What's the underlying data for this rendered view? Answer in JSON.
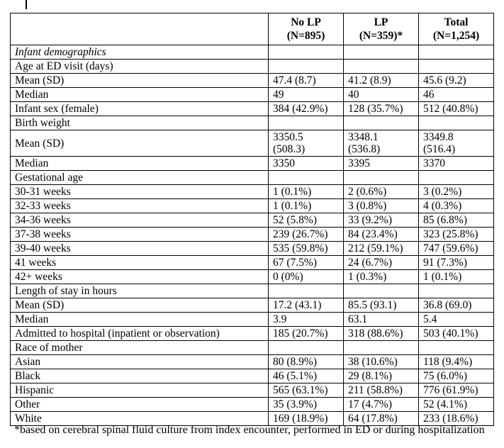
{
  "table": {
    "header": {
      "label_column": "",
      "columns": [
        "No LP\n(N=895)",
        "LP\n(N=359)*",
        "Total\n(N=1,254)"
      ]
    },
    "rows": [
      {
        "label": "Infant demographics",
        "style": "bolditalic",
        "values": [
          "",
          "",
          ""
        ]
      },
      {
        "label": "Age at ED visit (days)",
        "style": "bold",
        "values": [
          "",
          "",
          ""
        ]
      },
      {
        "label": "Mean (SD)",
        "style": "normal",
        "values": [
          "47.4 (8.7)",
          "41.2 (8.9)",
          "45.6 (9.2)"
        ]
      },
      {
        "label": "Median",
        "style": "normal",
        "values": [
          "49",
          "40",
          "46"
        ]
      },
      {
        "label": "Infant sex (female)",
        "style": "bold",
        "values": [
          "384 (42.9%)",
          "128 (35.7%)",
          "512 (40.8%)"
        ]
      },
      {
        "label": "Birth weight",
        "style": "bold",
        "values": [
          "",
          "",
          ""
        ]
      },
      {
        "label": "Mean (SD)",
        "style": "normal",
        "values": [
          "3350.5\n(508.3)",
          "3348.1\n(536.8)",
          "3349.8\n(516.4)"
        ]
      },
      {
        "label": "Median",
        "style": "normal",
        "values": [
          "3350",
          "3395",
          "3370"
        ]
      },
      {
        "label": "Gestational age",
        "style": "bold",
        "values": [
          "",
          "",
          ""
        ]
      },
      {
        "label": "30-31 weeks",
        "style": "normal",
        "values": [
          "1 (0.1%)",
          "2 (0.6%)",
          "3 (0.2%)"
        ]
      },
      {
        "label": "32-33 weeks",
        "style": "normal",
        "values": [
          "1 (0.1%)",
          "3 (0.8%)",
          "4 (0.3%)"
        ]
      },
      {
        "label": "34-36 weeks",
        "style": "normal",
        "values": [
          "52 (5.8%)",
          "33 (9.2%)",
          "85 (6.8%)"
        ]
      },
      {
        "label": "37-38 weeks",
        "style": "normal",
        "values": [
          "239 (26.7%)",
          "84 (23.4%)",
          "323 (25.8%)"
        ]
      },
      {
        "label": "39-40 weeks",
        "style": "normal",
        "values": [
          "535 (59.8%)",
          "212 (59.1%)",
          "747 (59.6%)"
        ]
      },
      {
        "label": "41 weeks",
        "style": "normal",
        "values": [
          "67 (7.5%)",
          "24 (6.7%)",
          "91 (7.3%)"
        ]
      },
      {
        "label": "42+ weeks",
        "style": "normal",
        "values": [
          "0 (0%)",
          "1 (0.3%)",
          "1 (0.1%)"
        ]
      },
      {
        "label": "Length of stay in hours",
        "style": "bold",
        "values": [
          "",
          "",
          ""
        ]
      },
      {
        "label": "Mean (SD)",
        "style": "normal",
        "values": [
          "17.2 (43.1)",
          "85.5 (93.1)",
          "36.8 (69.0)"
        ]
      },
      {
        "label": "Median",
        "style": "normal",
        "values": [
          "3.9",
          "63.1",
          "5.4"
        ]
      },
      {
        "label": "Admitted to hospital (inpatient or observation)",
        "style": "bold",
        "values": [
          "185 (20.7%)",
          "318 (88.6%)",
          "503 (40.1%)"
        ]
      },
      {
        "label": "Race of mother",
        "style": "bold",
        "values": [
          "",
          "",
          ""
        ]
      },
      {
        "label": "Asian",
        "style": "normal",
        "values": [
          "80 (8.9%)",
          "38 (10.6%)",
          "118 (9.4%)"
        ]
      },
      {
        "label": "Black",
        "style": "normal",
        "values": [
          "46 (5.1%)",
          "29 (8.1%)",
          "75 (6.0%)"
        ]
      },
      {
        "label": "Hispanic",
        "style": "normal",
        "values": [
          "565 (63.1%)",
          "211 (58.8%)",
          "776 (61.9%)"
        ]
      },
      {
        "label": "Other",
        "style": "normal",
        "values": [
          "35 (3.9%)",
          "17 (4.7%)",
          "52 (4.1%)"
        ]
      },
      {
        "label": "White",
        "style": "normal",
        "values": [
          "169 (18.9%)",
          "64 (17.8%)",
          "233 (18.6%)"
        ]
      }
    ]
  },
  "footnote": "*based on cerebral spinal fluid culture from index encounter, performed in ED or during hospitalization",
  "colors": {
    "border": "#000000",
    "text": "#000000",
    "background": "#ffffff"
  }
}
